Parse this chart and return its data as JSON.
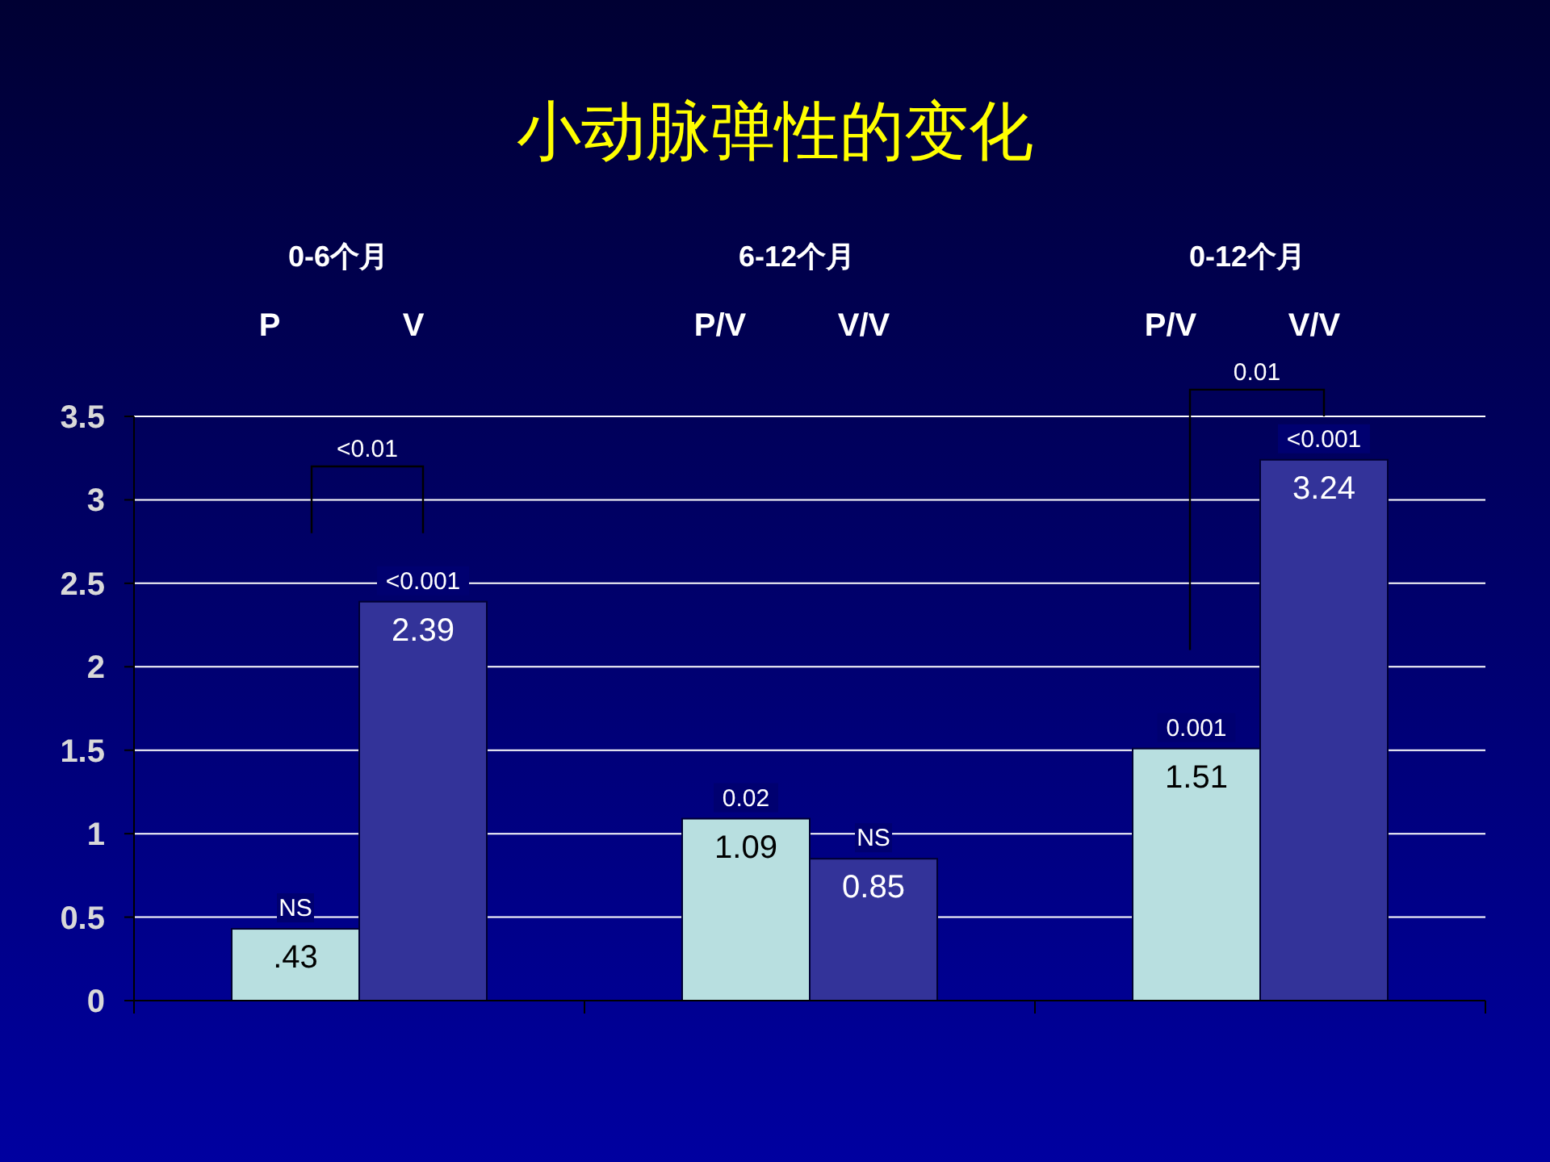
{
  "chart_data": {
    "type": "bar",
    "title": "小动脉弹性的变化",
    "categories": [
      "0-6个月",
      "6-12个月",
      "0-12个月"
    ],
    "series": [
      {
        "color": "#b8dfe0",
        "values": [
          0.43,
          1.09,
          1.51
        ],
        "value_labels": [
          ".43",
          "1.09",
          "1.51"
        ]
      },
      {
        "color": "#333399",
        "values": [
          2.39,
          0.85,
          3.24
        ],
        "value_labels": [
          "2.39",
          "0.85",
          "3.24"
        ]
      }
    ],
    "ylim": [
      0,
      3.5
    ],
    "yticks": [
      0,
      0.5,
      1,
      1.5,
      2,
      2.5,
      3,
      3.5
    ],
    "grid": "y",
    "annotations": [
      "P",
      "V",
      "P/V",
      "V/V",
      "P/V",
      "V/V",
      "<0.01",
      "0.01",
      "NS",
      "<0.001",
      "0.02",
      "NS",
      "0.001",
      "<0.001"
    ]
  }
}
